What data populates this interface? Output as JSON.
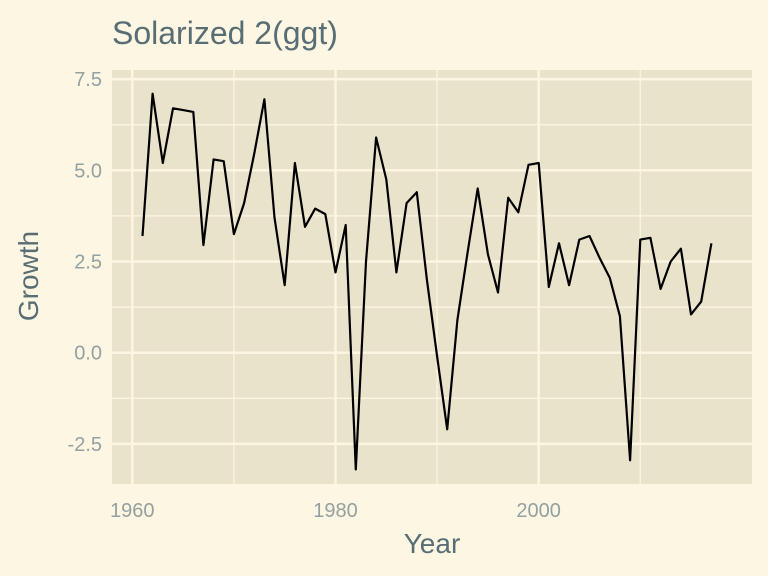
{
  "chart_data": {
    "type": "line",
    "title": "Solarized  2(ggt)",
    "xlabel": "Year",
    "ylabel": "Growth",
    "xlim": [
      1958,
      2021
    ],
    "ylim": [
      -3.6,
      7.75
    ],
    "x_ticks": [
      {
        "value": 1960,
        "label": "1960"
      },
      {
        "value": 1980,
        "label": "1980"
      },
      {
        "value": 2000,
        "label": "2000"
      }
    ],
    "y_ticks": [
      {
        "value": 7.5,
        "label": "7.5"
      },
      {
        "value": 5.0,
        "label": "5.0"
      },
      {
        "value": 2.5,
        "label": "2.5"
      },
      {
        "value": 0.0,
        "label": "0.0"
      },
      {
        "value": -2.5,
        "label": "-2.5"
      }
    ],
    "grid": true,
    "colors": {
      "background": "#fdf6e3",
      "panel": "#eae3cb",
      "grid": "#fdf6e3",
      "line": "#000000",
      "title": "#586e75",
      "tick_label": "#93a1a1"
    },
    "series": [
      {
        "x": [
          1961,
          1962,
          1963,
          1964,
          1965,
          1966,
          1967,
          1968,
          1969,
          1970,
          1971,
          1972,
          1973,
          1974,
          1975,
          1976,
          1977,
          1978,
          1979,
          1980,
          1981,
          1982,
          1983,
          1984,
          1985,
          1986,
          1987,
          1988,
          1989,
          1990,
          1991,
          1992,
          1993,
          1994,
          1995,
          1996,
          1997,
          1998,
          1999,
          2000,
          2001,
          2002,
          2003,
          2004,
          2005,
          2006,
          2007,
          2008,
          2009,
          2010,
          2011,
          2012,
          2013,
          2014,
          2015,
          2016,
          2017
        ],
        "y": [
          3.2,
          7.1,
          5.2,
          6.7,
          6.65,
          6.6,
          2.95,
          5.3,
          5.25,
          3.25,
          4.1,
          5.45,
          6.95,
          3.7,
          1.85,
          5.2,
          3.45,
          3.95,
          3.8,
          2.2,
          3.5,
          -3.2,
          2.5,
          5.9,
          4.75,
          2.2,
          4.1,
          4.4,
          2.0,
          -0.1,
          -2.1,
          0.9,
          2.75,
          4.5,
          2.7,
          1.65,
          4.25,
          3.85,
          5.15,
          5.2,
          1.8,
          3.0,
          1.85,
          3.1,
          3.2,
          2.6,
          2.05,
          1.0,
          -2.95,
          3.1,
          3.15,
          1.75,
          2.5,
          2.85,
          1.05,
          1.4,
          3.0
        ]
      }
    ]
  }
}
